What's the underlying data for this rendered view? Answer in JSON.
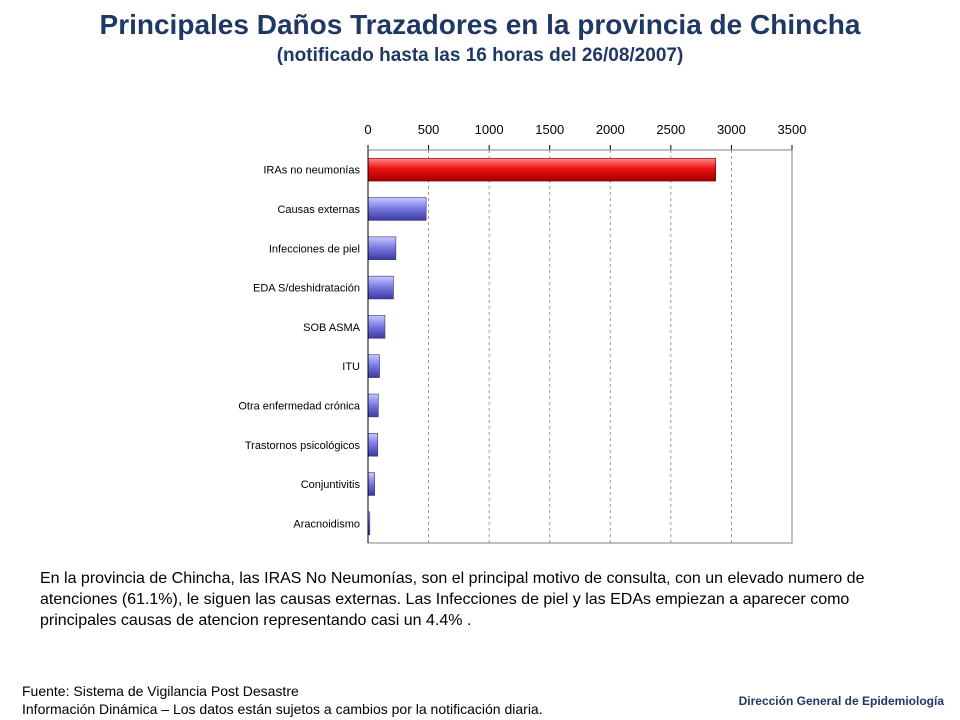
{
  "title": "Principales Daños Trazadores en la provincia de Chincha",
  "subtitle": "(notificado hasta las 16 horas del 26/08/2007)",
  "chart_data": {
    "type": "bar",
    "orientation": "horizontal",
    "categories": [
      "IRAs no neumonías",
      "Causas externas",
      "Infecciones de piel",
      "EDA S/deshidratación",
      "SOB ASMA",
      "ITU",
      "Otra enfermedad crónica",
      "Trastornos psicológicos",
      "Conjuntivitis",
      "Aracnoidismo"
    ],
    "values": [
      2870,
      480,
      230,
      210,
      140,
      95,
      85,
      80,
      55,
      15
    ],
    "xlim": [
      0,
      3500
    ],
    "xticks": [
      0,
      500,
      1000,
      1500,
      2000,
      2500,
      3000,
      3500
    ],
    "tick_labels": [
      "0",
      "500",
      "1000",
      "1500",
      "2000",
      "2500",
      "3000",
      "3500"
    ],
    "highlight_color": "#e8000b",
    "bar_color": "#7b7bdc",
    "xlabel": "",
    "ylabel": ""
  },
  "body_text": "En la provincia de Chincha, las IRAS No Neumonías, son el principal motivo de consulta, con un elevado numero de atenciones (61.1%), le siguen las causas externas. Las Infecciones de piel y las EDAs empiezan a aparecer como principales causas de atencion representando casi un 4.4% .",
  "footer": {
    "source_line1": "Fuente: Sistema de Vigilancia Post Desastre",
    "source_line2": "Información Dinámica – Los datos están sujetos a cambios por la notificación diaria.",
    "organization": "Dirección General de Epidemiología"
  }
}
